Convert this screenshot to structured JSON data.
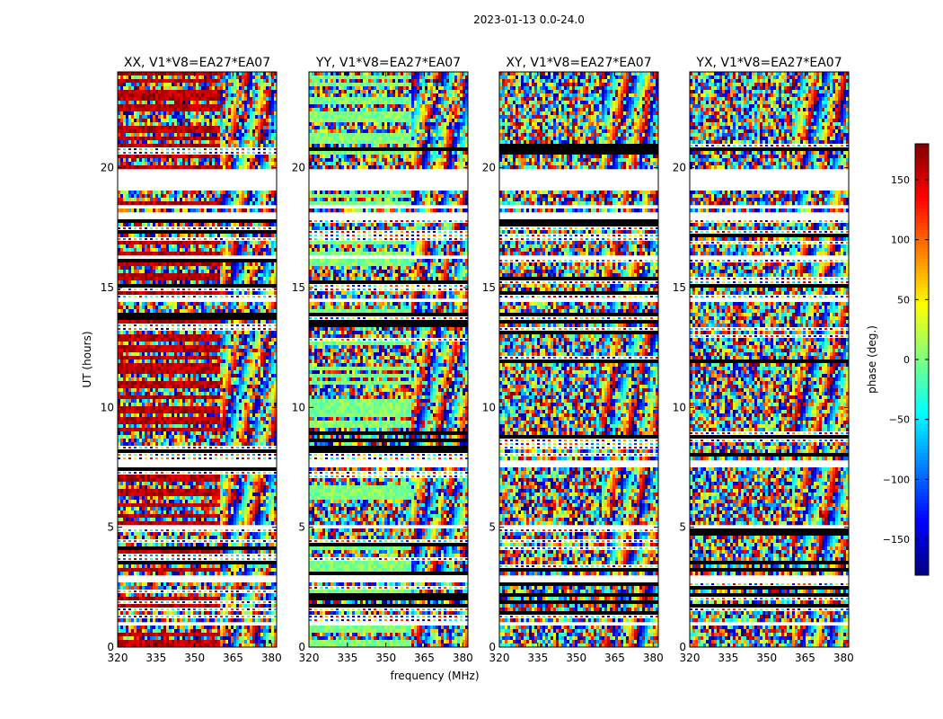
{
  "chart_data": {
    "type": "heatmap",
    "suptitle": "2023-01-13 0.0-24.0",
    "xlabel": "frequency (MHz)",
    "ylabel": "UT (hours)",
    "xlim": [
      320,
      382
    ],
    "ylim": [
      0,
      24
    ],
    "xticks": [
      320,
      335,
      350,
      365,
      380
    ],
    "yticks": [
      0,
      5,
      10,
      15,
      20
    ],
    "panels": [
      {
        "id": "xx",
        "title": "XX, V1*V8=EA27*EA07",
        "dominant_phase": 160
      },
      {
        "id": "yy",
        "title": "YY, V1*V8=EA27*EA07",
        "dominant_phase": 0
      },
      {
        "id": "xy",
        "title": "XY, V1*V8=EA27*EA07",
        "dominant_phase": null
      },
      {
        "id": "yx",
        "title": "YX, V1*V8=EA27*EA07",
        "dominant_phase": null
      }
    ],
    "colorbar": {
      "label": "phase (deg.)",
      "range": [
        -180,
        180
      ],
      "ticks": [
        150,
        100,
        50,
        0,
        -50,
        -100,
        -150
      ],
      "tick_labels": [
        "150",
        "100",
        "50",
        "0",
        "−50",
        "−100",
        "−150"
      ],
      "colormap": "jet"
    },
    "flagged_ut_ranges": [
      [
        19.0,
        20.0
      ],
      [
        18.3,
        18.5
      ],
      [
        17.9,
        18.1
      ],
      [
        7.45,
        7.75
      ],
      [
        5.0,
        5.12
      ],
      [
        2.9,
        3.0
      ],
      [
        2.7,
        2.8
      ],
      [
        0.95,
        1.05
      ],
      [
        10.15,
        10.25
      ],
      [
        12.1,
        12.2
      ],
      [
        14.4,
        14.5
      ],
      [
        15.4,
        15.5
      ],
      [
        16.2,
        16.3
      ]
    ],
    "colorful_ut_ranges": [
      [
        20.0,
        20.4
      ],
      [
        18.5,
        19.0
      ],
      [
        16.5,
        16.8
      ],
      [
        15.5,
        16.0
      ],
      [
        13.9,
        14.4
      ],
      [
        12.2,
        12.7
      ],
      [
        9.0,
        11.8
      ],
      [
        5.3,
        7.0
      ],
      [
        0.0,
        0.9
      ],
      [
        21.0,
        24.0
      ]
    ]
  }
}
